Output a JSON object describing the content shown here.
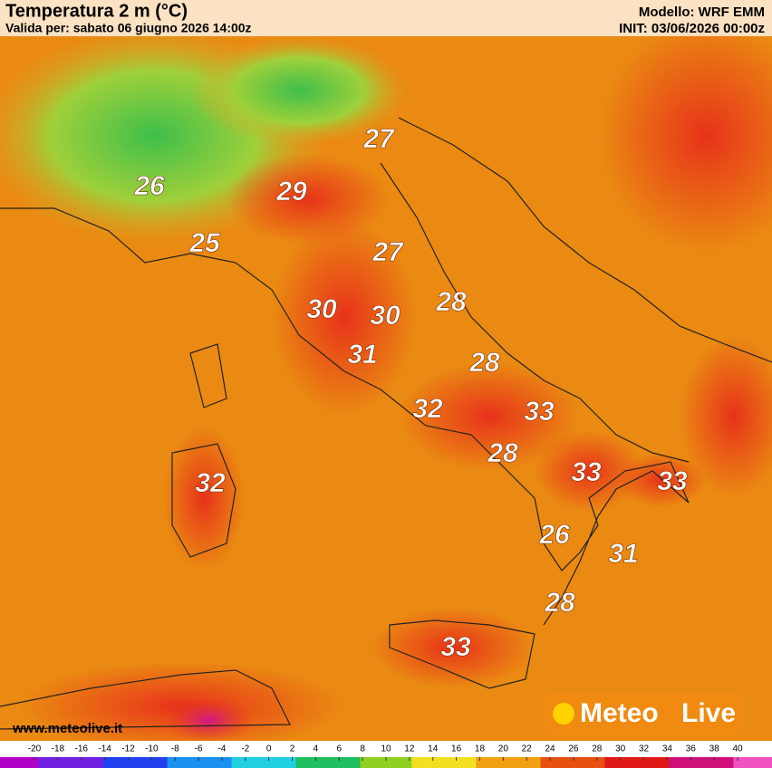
{
  "header": {
    "title": "Temperatura 2 m (°C)",
    "valid": "Valida per: sabato 06 giugno 2026 14:00z",
    "model": "Modello: WRF EMM",
    "init": "INIT: 03/06/2026 00:00z"
  },
  "labels": [
    "27",
    "26",
    "29",
    "25",
    "27",
    "28",
    "30",
    "30",
    "31",
    "28",
    "32",
    "33",
    "28",
    "33",
    "33",
    "32",
    "26",
    "31",
    "28",
    "33"
  ],
  "colorbar": {
    "ticks": [
      -20,
      -18,
      -16,
      -14,
      -12,
      -10,
      -8,
      -6,
      -4,
      -2,
      0,
      2,
      4,
      6,
      8,
      10,
      12,
      14,
      16,
      18,
      20,
      22,
      24,
      26,
      28,
      30,
      32,
      34,
      36,
      38,
      40
    ]
  },
  "footer": {
    "website": "www.meteolive.it",
    "logo_left": "Meteo",
    "logo_right": "Live"
  }
}
